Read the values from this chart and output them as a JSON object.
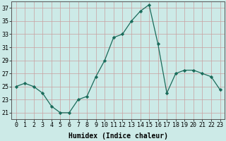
{
  "x": [
    0,
    1,
    2,
    3,
    4,
    5,
    6,
    7,
    8,
    9,
    10,
    11,
    12,
    13,
    14,
    15,
    16,
    17,
    18,
    19,
    20,
    21,
    22,
    23
  ],
  "y": [
    25,
    25.5,
    25,
    24,
    22,
    21,
    21,
    23,
    23.5,
    26.5,
    29,
    32.5,
    33,
    35,
    36.5,
    37.5,
    31.5,
    24,
    27,
    27.5,
    27.5,
    27,
    26.5,
    24.5
  ],
  "line_color": "#1a6b5a",
  "marker": "D",
  "marker_size": 2.2,
  "background_color": "#cceae7",
  "grid_color": "#c8a0a0",
  "xlabel": "Humidex (Indice chaleur)",
  "ylim": [
    20,
    38
  ],
  "yticks": [
    21,
    23,
    25,
    27,
    29,
    31,
    33,
    35,
    37
  ],
  "xtick_labels": [
    "0",
    "1",
    "2",
    "3",
    "4",
    "5",
    "6",
    "7",
    "8",
    "9",
    "10",
    "11",
    "12",
    "13",
    "14",
    "15",
    "16",
    "17",
    "18",
    "19",
    "20",
    "21",
    "22",
    "23"
  ],
  "xlabel_fontsize": 7,
  "tick_fontsize": 6
}
